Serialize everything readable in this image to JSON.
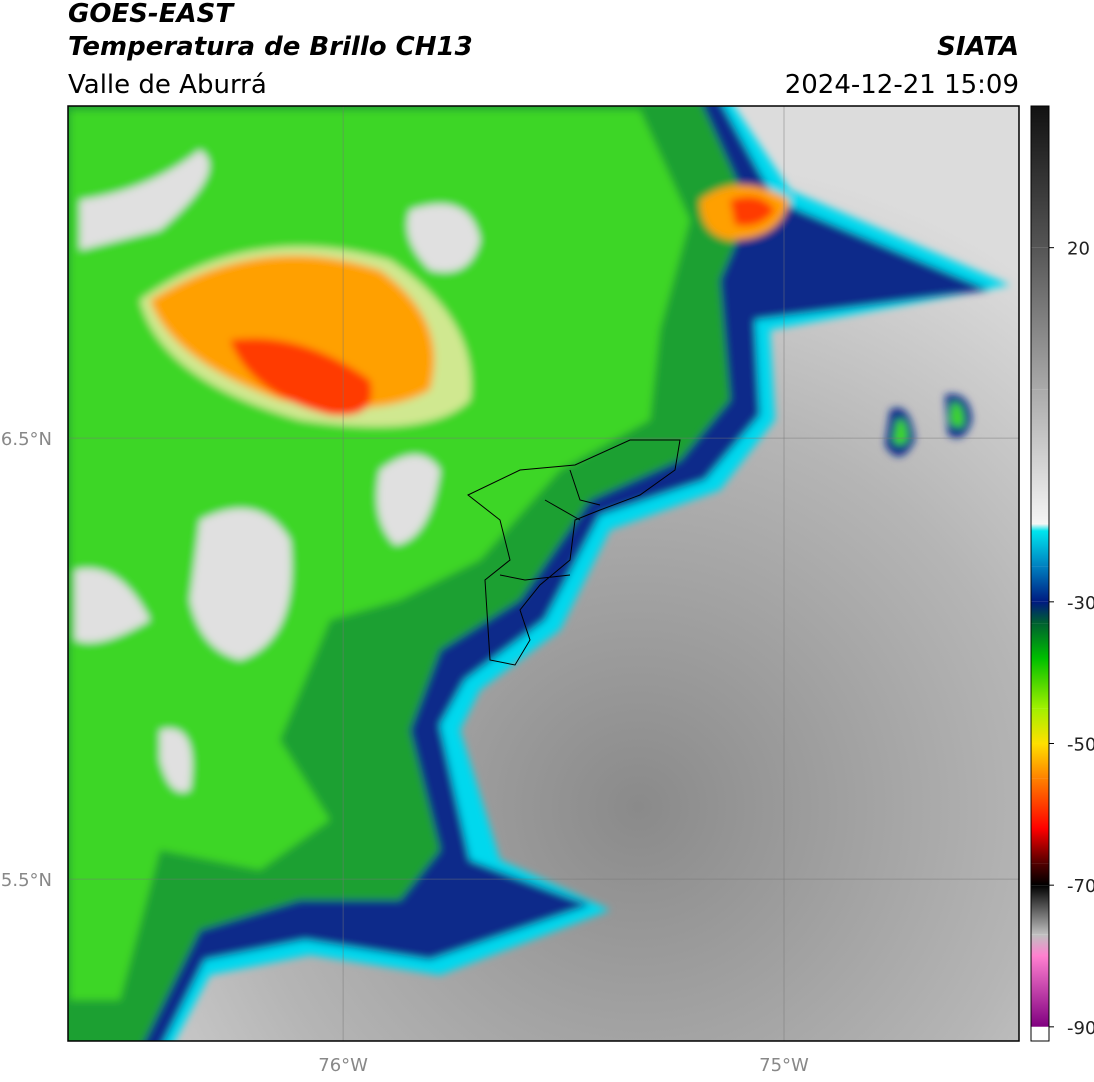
{
  "header": {
    "title": "GOES-EAST",
    "subtitle": "Temperatura de Brillo CH13",
    "region": "Valle de Aburrá",
    "source": "SIATA",
    "datetime": "2024-12-21 15:09"
  },
  "map": {
    "xlim": [
      -76.624,
      -74.467
    ],
    "ylim": [
      5.133,
      7.253
    ],
    "xticks": [
      {
        "value": -76,
        "label": "76°W"
      },
      {
        "value": -75,
        "label": "75°W"
      }
    ],
    "yticks": [
      {
        "value": 6.5,
        "label": "6.5°N"
      },
      {
        "value": 5.5,
        "label": "5.5°N"
      }
    ]
  },
  "colorbar": {
    "clim": [
      -92,
      40
    ],
    "ticks": [
      20,
      -30,
      -50,
      -70,
      -90
    ],
    "stops": [
      {
        "value": 40,
        "color": "#111111"
      },
      {
        "value": 20,
        "color": "#555555"
      },
      {
        "value": 0,
        "color": "#aaaaaa"
      },
      {
        "value": -19,
        "color": "#f5f5f5"
      },
      {
        "value": -20,
        "color": "#00e5ee"
      },
      {
        "value": -25,
        "color": "#0080c0"
      },
      {
        "value": -30,
        "color": "#001a80"
      },
      {
        "value": -33,
        "color": "#006030"
      },
      {
        "value": -38,
        "color": "#00c000"
      },
      {
        "value": -45,
        "color": "#a0f000"
      },
      {
        "value": -50,
        "color": "#ffe000"
      },
      {
        "value": -55,
        "color": "#ff8000"
      },
      {
        "value": -62,
        "color": "#ff0000"
      },
      {
        "value": -67,
        "color": "#500000"
      },
      {
        "value": -70,
        "color": "#000000"
      },
      {
        "value": -77,
        "color": "#c0c0c0"
      },
      {
        "value": -80,
        "color": "#ff80d0"
      },
      {
        "value": -90,
        "color": "#800080"
      }
    ]
  }
}
